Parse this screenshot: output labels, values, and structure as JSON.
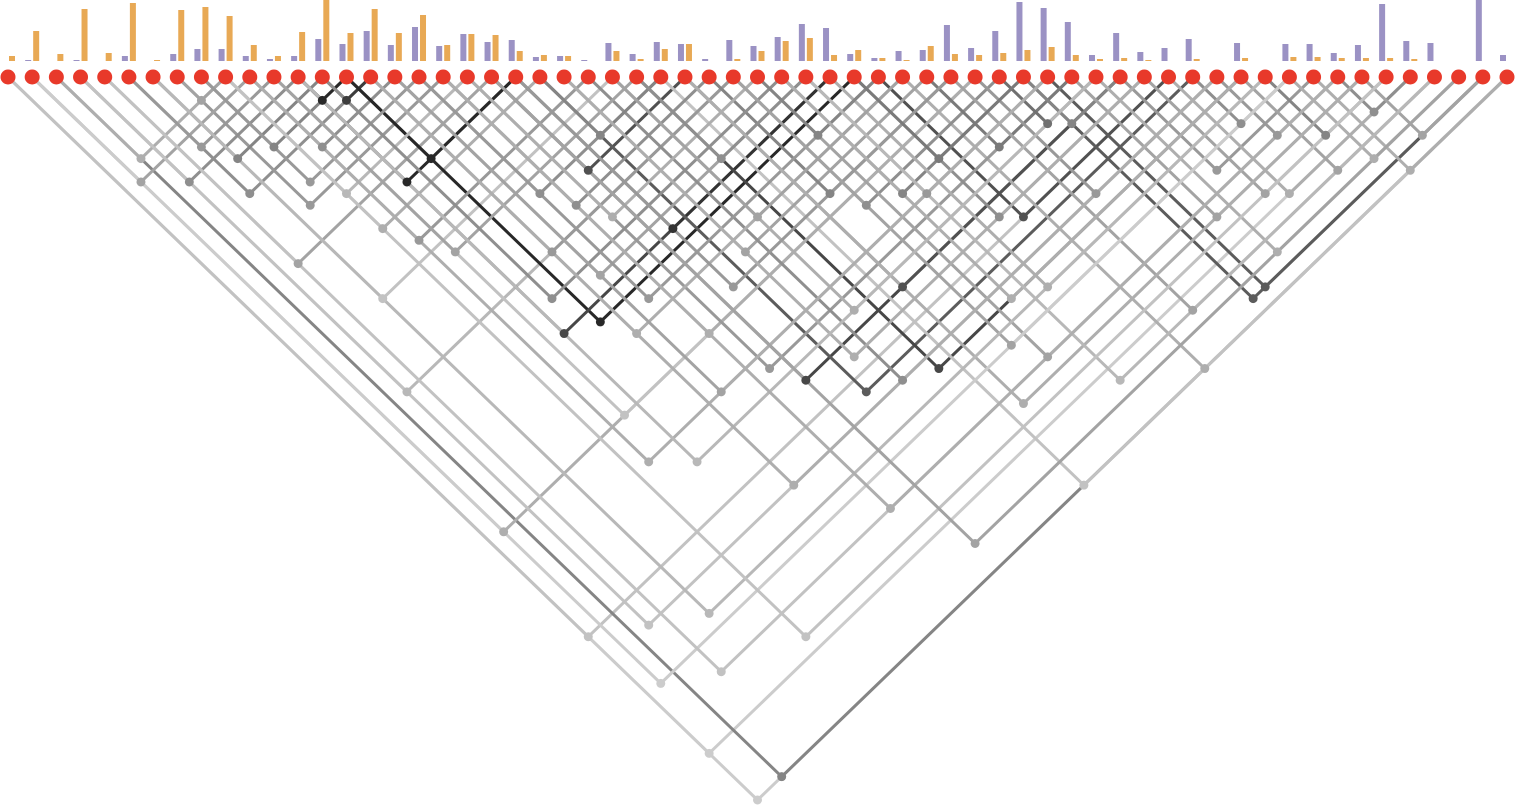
{
  "chart_data": {
    "type": "triangle-network",
    "node_color": "#e8392a",
    "ylim": [
      0,
      61
    ],
    "series": [
      {
        "color": "#9b92c4",
        "values": [
          0,
          1,
          0,
          1,
          0,
          5,
          0,
          7,
          12,
          12,
          5,
          2,
          5,
          22,
          17,
          30,
          16,
          34,
          15,
          27,
          19,
          21,
          4,
          5,
          1,
          18,
          7,
          19,
          17,
          2,
          21,
          15,
          24,
          37,
          33,
          7,
          3,
          10,
          11,
          36,
          13,
          30,
          59,
          53,
          39,
          6,
          28,
          9,
          13,
          22,
          0,
          18,
          0,
          17,
          17,
          8,
          16,
          57,
          20,
          18,
          0,
          61,
          6
        ]
      },
      {
        "color": "#e8a955",
        "values": [
          5,
          30,
          7,
          52,
          8,
          58,
          1,
          51,
          54,
          45,
          16,
          5,
          29,
          61,
          28,
          52,
          28,
          46,
          16,
          27,
          26,
          10,
          6,
          5,
          0,
          10,
          2,
          12,
          17,
          0,
          2,
          10,
          20,
          23,
          6,
          11,
          3,
          1,
          15,
          7,
          6,
          8,
          11,
          14,
          6,
          2,
          3,
          1,
          0,
          2,
          0,
          3,
          0,
          4,
          4,
          3,
          3,
          3,
          2,
          0,
          0,
          0,
          0
        ]
      }
    ],
    "links": [
      [
        0,
        62,
        0.15
      ],
      [
        0,
        58,
        0.15
      ],
      [
        0,
        48,
        0.2
      ],
      [
        2,
        62,
        0.5
      ],
      [
        1,
        40,
        0.3
      ],
      [
        3,
        30,
        0.25
      ],
      [
        4,
        20,
        0.35
      ],
      [
        5,
        15,
        0.45
      ],
      [
        6,
        25,
        0.2
      ],
      [
        7,
        18,
        0.4
      ],
      [
        8,
        14,
        0.5
      ],
      [
        9,
        22,
        0.3
      ],
      [
        10,
        16,
        0.45
      ],
      [
        11,
        40,
        0.2
      ],
      [
        12,
        14,
        0.95
      ],
      [
        13,
        15,
        0.85
      ],
      [
        12,
        21,
        0.95
      ],
      [
        14,
        21,
        0.95
      ],
      [
        14,
        35,
        0.95
      ],
      [
        12,
        34,
        0.8
      ],
      [
        20,
        28,
        0.75
      ],
      [
        21,
        34,
        0.9
      ],
      [
        20,
        46,
        0.8
      ],
      [
        22,
        49,
        0.7
      ],
      [
        26,
        51,
        0.8
      ],
      [
        28,
        46,
        0.75
      ],
      [
        36,
        48,
        0.75
      ],
      [
        42,
        61,
        0.7
      ],
      [
        43,
        61,
        0.7
      ],
      [
        37,
        62,
        0.3
      ],
      [
        27,
        62,
        0.2
      ],
      [
        15,
        30,
        0.4
      ],
      [
        16,
        33,
        0.35
      ],
      [
        17,
        27,
        0.45
      ],
      [
        18,
        40,
        0.3
      ],
      [
        19,
        44,
        0.4
      ],
      [
        23,
        38,
        0.35
      ],
      [
        24,
        50,
        0.45
      ],
      [
        25,
        45,
        0.3
      ],
      [
        29,
        39,
        0.5
      ],
      [
        30,
        41,
        0.45
      ],
      [
        31,
        55,
        0.35
      ],
      [
        32,
        42,
        0.5
      ],
      [
        33,
        43,
        0.4
      ],
      [
        34,
        52,
        0.3
      ],
      [
        35,
        47,
        0.45
      ],
      [
        38,
        44,
        0.55
      ],
      [
        39,
        59,
        0.35
      ],
      [
        40,
        50,
        0.4
      ],
      [
        41,
        45,
        0.6
      ],
      [
        42,
        46,
        0.5
      ],
      [
        44,
        56,
        0.35
      ],
      [
        45,
        60,
        0.3
      ],
      [
        46,
        54,
        0.4
      ],
      [
        47,
        57,
        0.35
      ],
      [
        48,
        58,
        0.3
      ],
      [
        49,
        53,
        0.45
      ],
      [
        50,
        55,
        0.4
      ],
      [
        51,
        59,
        0.35
      ],
      [
        52,
        57,
        0.5
      ],
      [
        53,
        60,
        0.3
      ],
      [
        54,
        62,
        0.3
      ],
      [
        55,
        58,
        0.45
      ],
      [
        56,
        61,
        0.35
      ],
      [
        1,
        10,
        0.35
      ],
      [
        2,
        9,
        0.3
      ],
      [
        3,
        12,
        0.45
      ],
      [
        5,
        11,
        0.4
      ],
      [
        6,
        13,
        0.5
      ],
      [
        7,
        9,
        0.35
      ],
      [
        8,
        17,
        0.4
      ],
      [
        9,
        19,
        0.25
      ],
      [
        10,
        24,
        0.4
      ],
      [
        11,
        26,
        0.35
      ],
      [
        13,
        32,
        0.45
      ],
      [
        15,
        37,
        0.3
      ],
      [
        16,
        43,
        0.35
      ],
      [
        17,
        36,
        0.4
      ],
      [
        18,
        29,
        0.45
      ],
      [
        19,
        31,
        0.3
      ],
      [
        21,
        39,
        0.4
      ],
      [
        22,
        27,
        0.5
      ],
      [
        23,
        47,
        0.3
      ],
      [
        25,
        37,
        0.35
      ],
      [
        26,
        33,
        0.45
      ],
      [
        28,
        56,
        0.3
      ],
      [
        30,
        53,
        0.35
      ],
      [
        31,
        36,
        0.5
      ],
      [
        32,
        51,
        0.3
      ],
      [
        33,
        59,
        0.25
      ],
      [
        35,
        42,
        0.55
      ],
      [
        1,
        53,
        0.15
      ],
      [
        4,
        55,
        0.2
      ],
      [
        3,
        50,
        0.2
      ],
      [
        6,
        52,
        0.25
      ],
      [
        9,
        57,
        0.2
      ],
      [
        10,
        43,
        0.3
      ],
      [
        12,
        45,
        0.25
      ],
      [
        15,
        50,
        0.3
      ],
      [
        18,
        55,
        0.3
      ],
      [
        20,
        60,
        0.35
      ]
    ]
  }
}
